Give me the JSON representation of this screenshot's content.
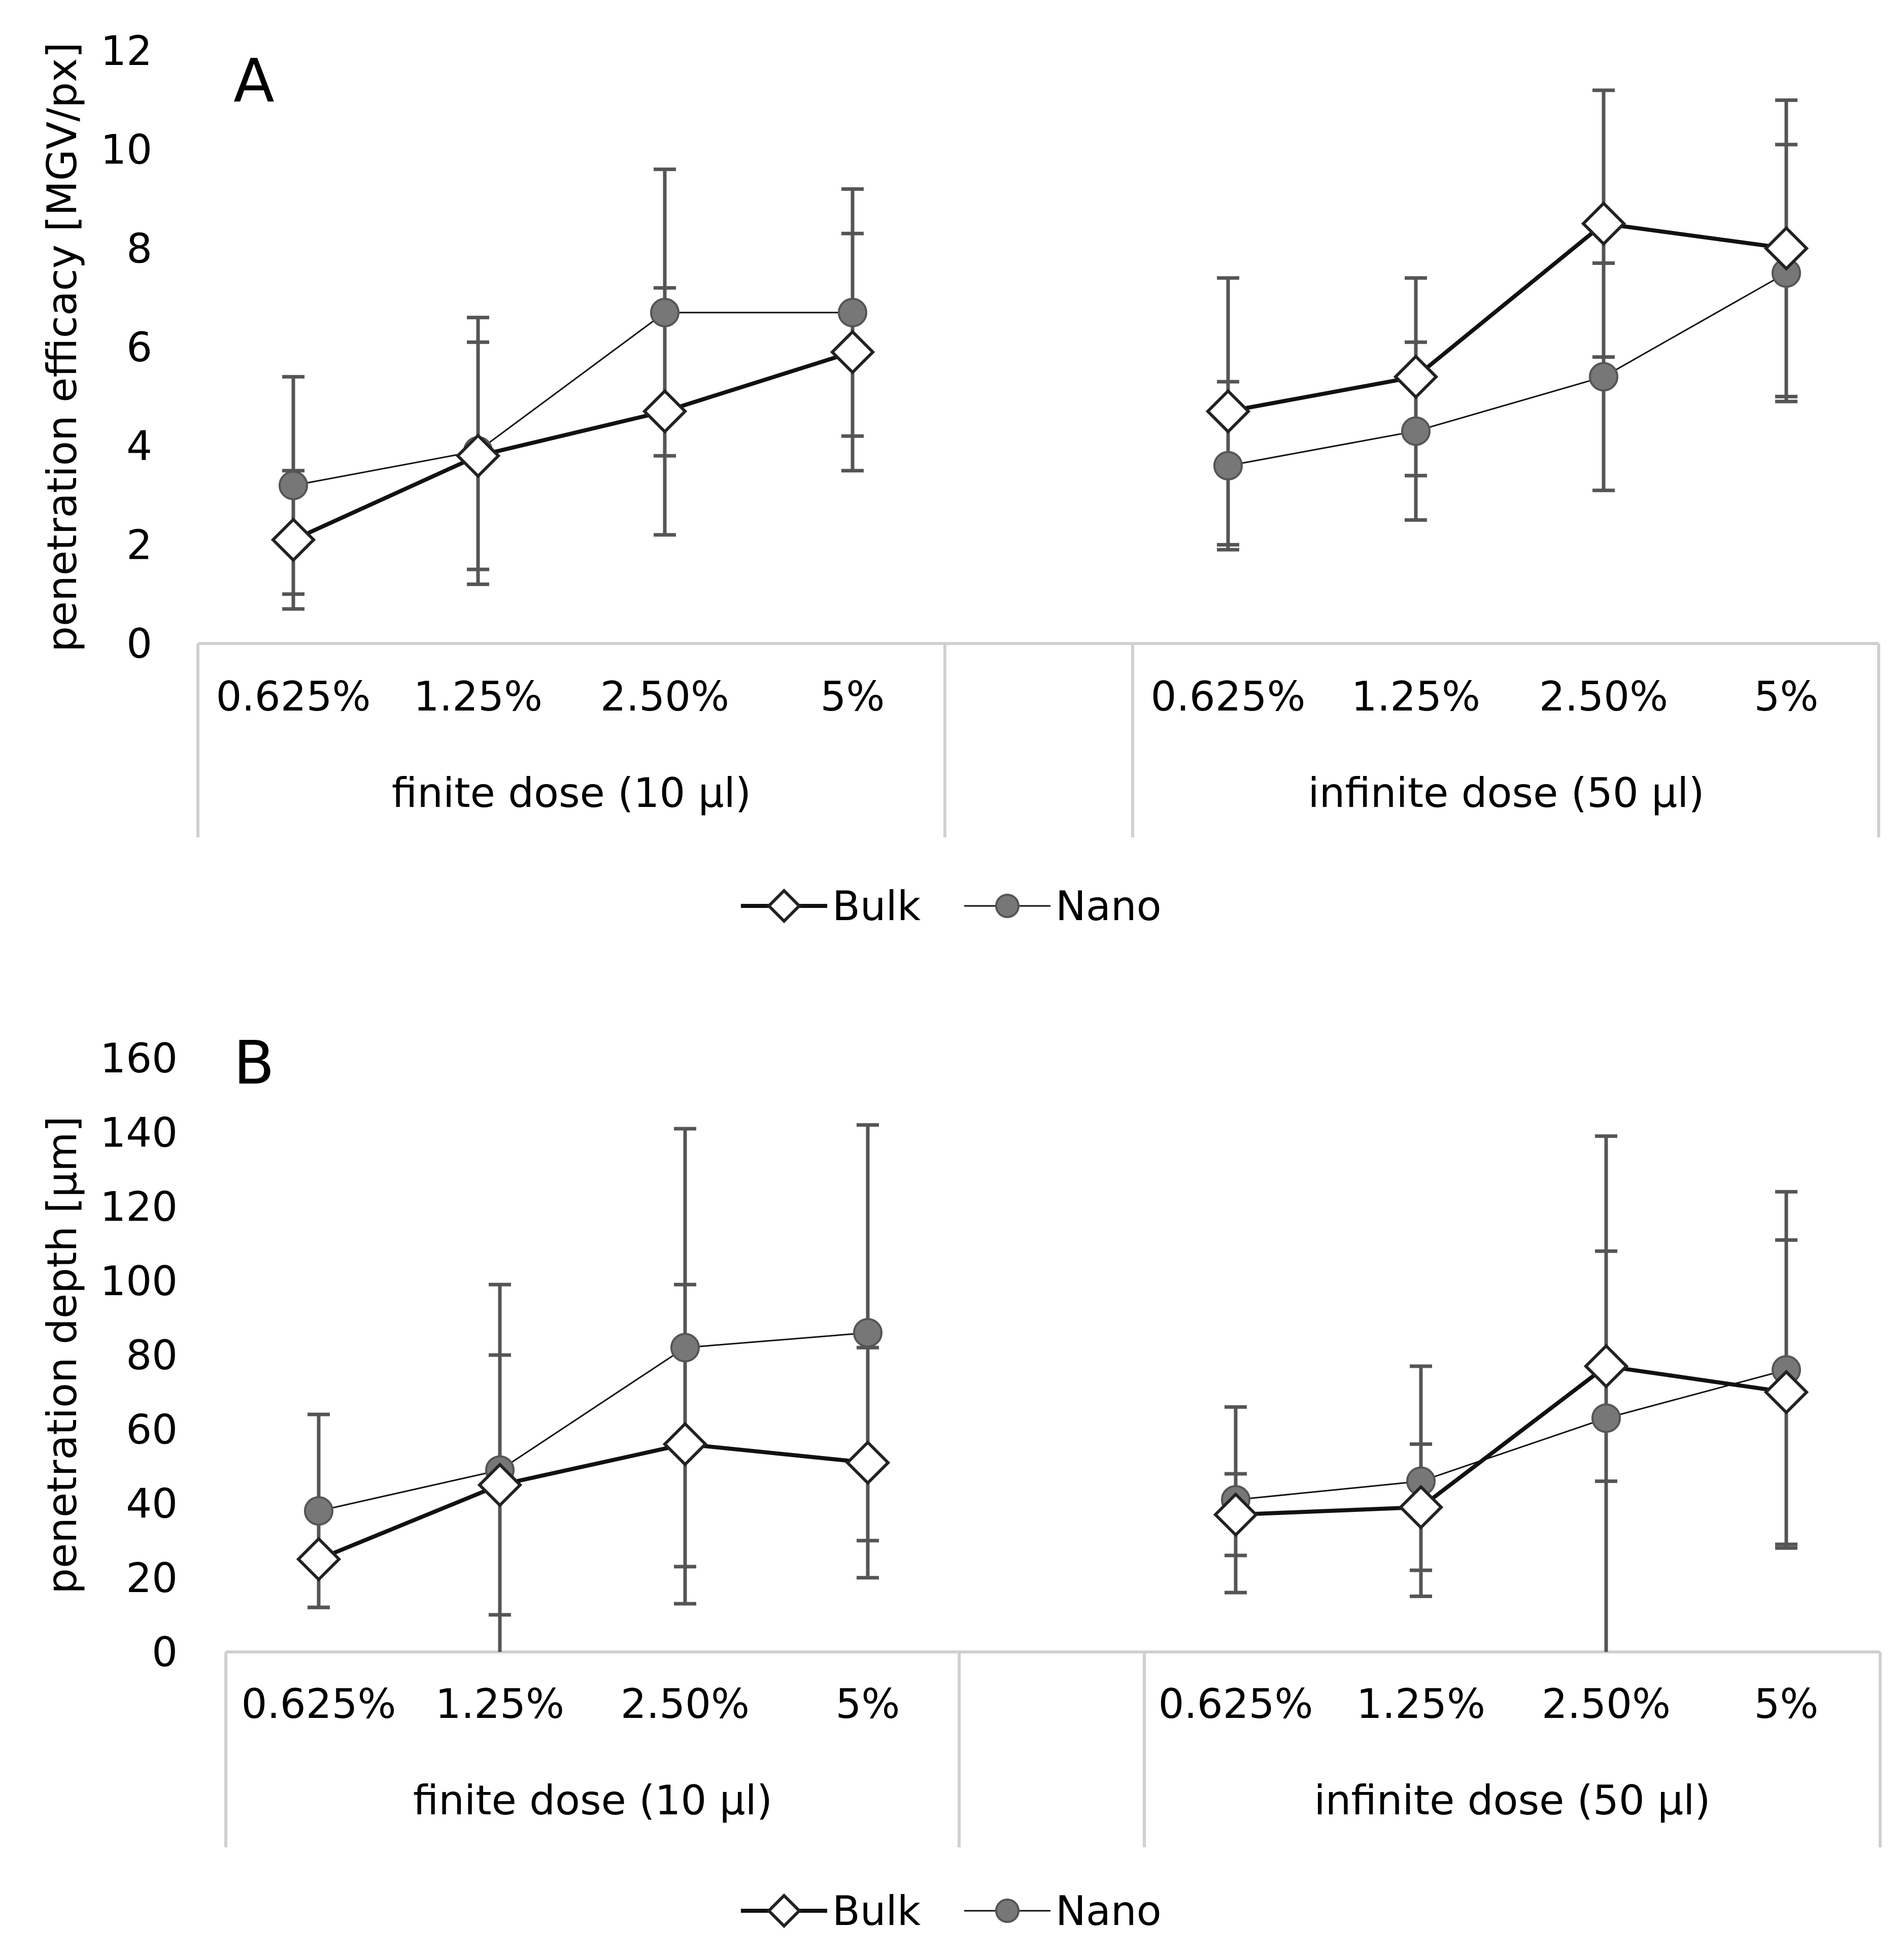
{
  "chart_data": [
    {
      "type": "line",
      "panel_label": "A",
      "ylabel": "penetration efficacy [MGV/px]",
      "ylim": [
        0,
        12
      ],
      "yticks": [
        0,
        2,
        4,
        6,
        8,
        10,
        12
      ],
      "categories": [
        "0.625%",
        "1.25%",
        "2.50%",
        "5%",
        "0.625%",
        "1.25%",
        "2.50%",
        "5%"
      ],
      "groups": [
        {
          "label": "finite dose (10 µl)",
          "categories": [
            "0.625%",
            "1.25%",
            "2.50%",
            "5%"
          ]
        },
        {
          "label": "infinite dose (50 µl)",
          "categories": [
            "0.625%",
            "1.25%",
            "2.50%",
            "5%"
          ]
        }
      ],
      "series": [
        {
          "name": "Bulk",
          "marker": "diamond",
          "segments": [
            {
              "values": [
                2.1,
                3.8,
                4.7,
                5.9
              ],
              "error": [
                1.4,
                2.3,
                2.5,
                2.4
              ]
            },
            {
              "values": [
                4.7,
                5.4,
                8.5,
                8.0
              ],
              "error": [
                2.7,
                2.0,
                2.7,
                3.0
              ]
            }
          ]
        },
        {
          "name": "Nano",
          "marker": "circle",
          "segments": [
            {
              "values": [
                3.2,
                3.9,
                6.7,
                6.7
              ],
              "error": [
                2.2,
                2.7,
                2.9,
                2.5
              ]
            },
            {
              "values": [
                3.6,
                4.3,
                5.4,
                7.5
              ],
              "error": [
                1.7,
                1.8,
                2.3,
                2.6
              ]
            }
          ]
        }
      ],
      "legend": {
        "position": "bottom-center",
        "entries": [
          "Bulk",
          "Nano"
        ]
      },
      "grid": false,
      "colors": {
        "bulk_marker_fill": "#ffffff",
        "nano_marker_fill": "#777777",
        "line": "#111111",
        "error_bar": "#555555",
        "axis": "#d0d0d0"
      }
    },
    {
      "type": "line",
      "panel_label": "B",
      "ylabel": "penetration depth [µm]",
      "ylim": [
        0,
        160
      ],
      "yticks": [
        0,
        20,
        40,
        60,
        80,
        100,
        120,
        140,
        160
      ],
      "categories": [
        "0.625%",
        "1.25%",
        "2.50%",
        "5%",
        "0.625%",
        "1.25%",
        "2.50%",
        "5%"
      ],
      "groups": [
        {
          "label": "finite dose (10 µl)",
          "categories": [
            "0.625%",
            "1.25%",
            "2.50%",
            "5%"
          ]
        },
        {
          "label": "infinite dose (50 µl)",
          "categories": [
            "0.625%",
            "1.25%",
            "2.50%",
            "5%"
          ]
        }
      ],
      "series": [
        {
          "name": "Bulk",
          "marker": "diamond",
          "segments": [
            {
              "values": [
                25,
                45,
                56,
                51
              ],
              "error": [
                13,
                35,
                43,
                31
              ]
            },
            {
              "values": [
                37,
                39,
                77,
                70
              ],
              "error": [
                11,
                17,
                31,
                41
              ]
            }
          ]
        },
        {
          "name": "Nano",
          "marker": "circle",
          "segments": [
            {
              "values": [
                38,
                49,
                82,
                86
              ],
              "error": [
                26,
                50,
                59,
                56
              ]
            },
            {
              "values": [
                41,
                46,
                63,
                76
              ],
              "error": [
                25,
                31,
                76,
                48
              ]
            }
          ]
        }
      ],
      "legend": {
        "position": "bottom-center",
        "entries": [
          "Bulk",
          "Nano"
        ]
      },
      "grid": false,
      "colors": {
        "bulk_marker_fill": "#ffffff",
        "nano_marker_fill": "#777777",
        "line": "#111111",
        "error_bar": "#555555",
        "axis": "#d0d0d0"
      }
    }
  ]
}
